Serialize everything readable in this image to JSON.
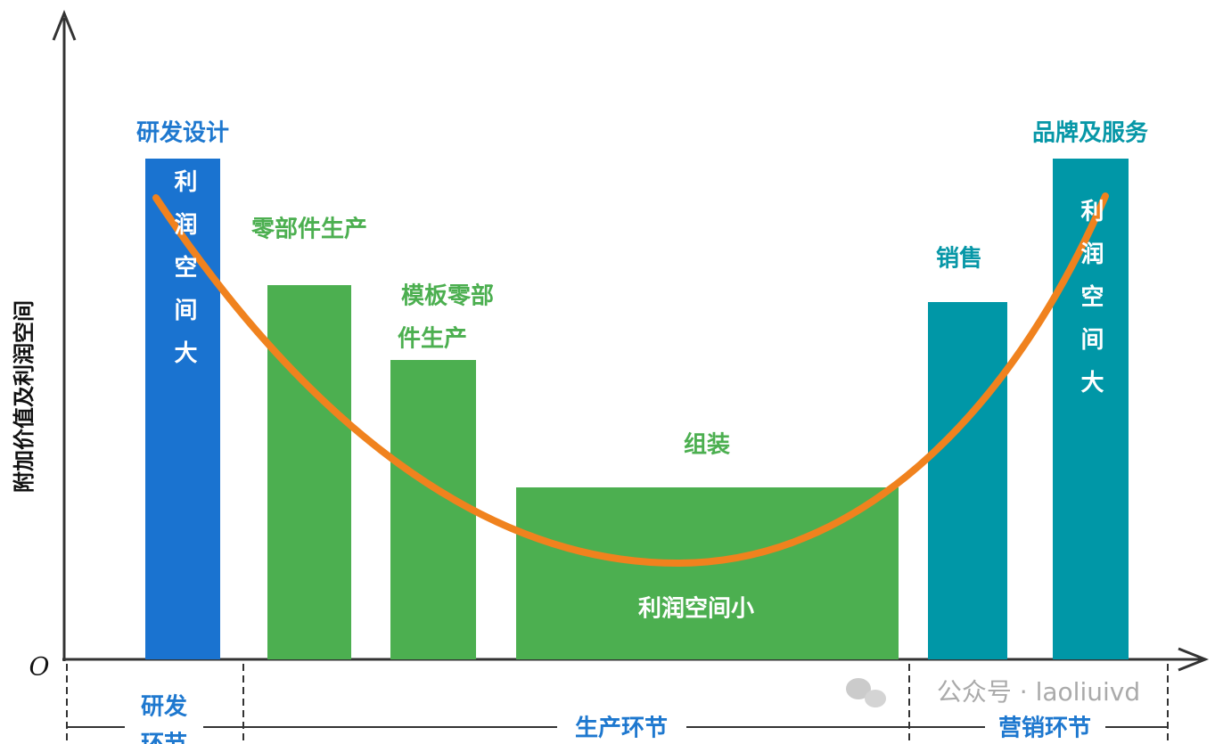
{
  "diagram": {
    "y_axis_label": "附加价值及利润空间",
    "origin": "O",
    "stages": [
      {
        "label": "研发设计",
        "bar_text": "利润空间大"
      },
      {
        "label": "零部件生产"
      },
      {
        "label_lines": [
          "模板零部",
          "件生产"
        ]
      },
      {
        "label": "组装",
        "bar_text": "利润空间小"
      },
      {
        "label": "销售"
      },
      {
        "label": "品牌及服务",
        "bar_text": "利润空间大"
      }
    ],
    "phases": [
      {
        "label_lines": [
          "研发",
          "环节"
        ]
      },
      {
        "label": "生产环节"
      },
      {
        "label": "营销环节"
      }
    ],
    "watermark": "公众号 · laoliuivd"
  }
}
